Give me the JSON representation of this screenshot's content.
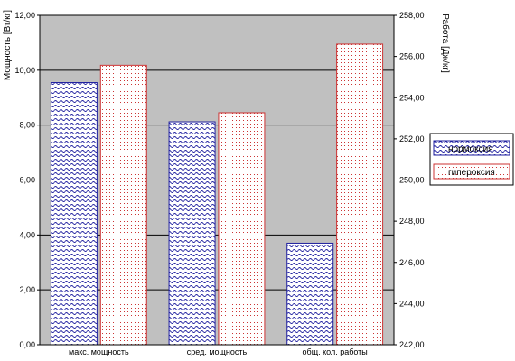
{
  "chart_data": {
    "type": "bar",
    "categories": [
      "макс. мощность",
      "сред. мощность",
      "общ. кол. работы"
    ],
    "y_left": {
      "label": "Мощность [Вт/кг]",
      "min": 0,
      "max": 12,
      "step": 2,
      "tick_labels": [
        "0,00",
        "2,00",
        "4,00",
        "6,00",
        "8,00",
        "10,00",
        "12,00"
      ]
    },
    "y_right": {
      "label": "Работа [Дж/кг]",
      "min": 242,
      "max": 258,
      "step": 2,
      "tick_labels": [
        "242,00",
        "244,00",
        "246,00",
        "248,00",
        "250,00",
        "252,00",
        "254,00",
        "256,00",
        "258,00"
      ]
    },
    "series": [
      {
        "name": "нормоксия",
        "values": [
          9.55,
          8.12,
          3.7
        ],
        "axis": [
          "left",
          "left",
          "left"
        ],
        "color": "#1f1f9f",
        "pattern": "wave"
      },
      {
        "name": "гипероксия",
        "values": [
          10.18,
          8.45,
          256.6
        ],
        "axis": [
          "left",
          "left",
          "right"
        ],
        "color": "#cc3333",
        "pattern": "dots"
      }
    ],
    "plot_background": "#c0c0c0",
    "grid": true,
    "legend_position": "right"
  }
}
